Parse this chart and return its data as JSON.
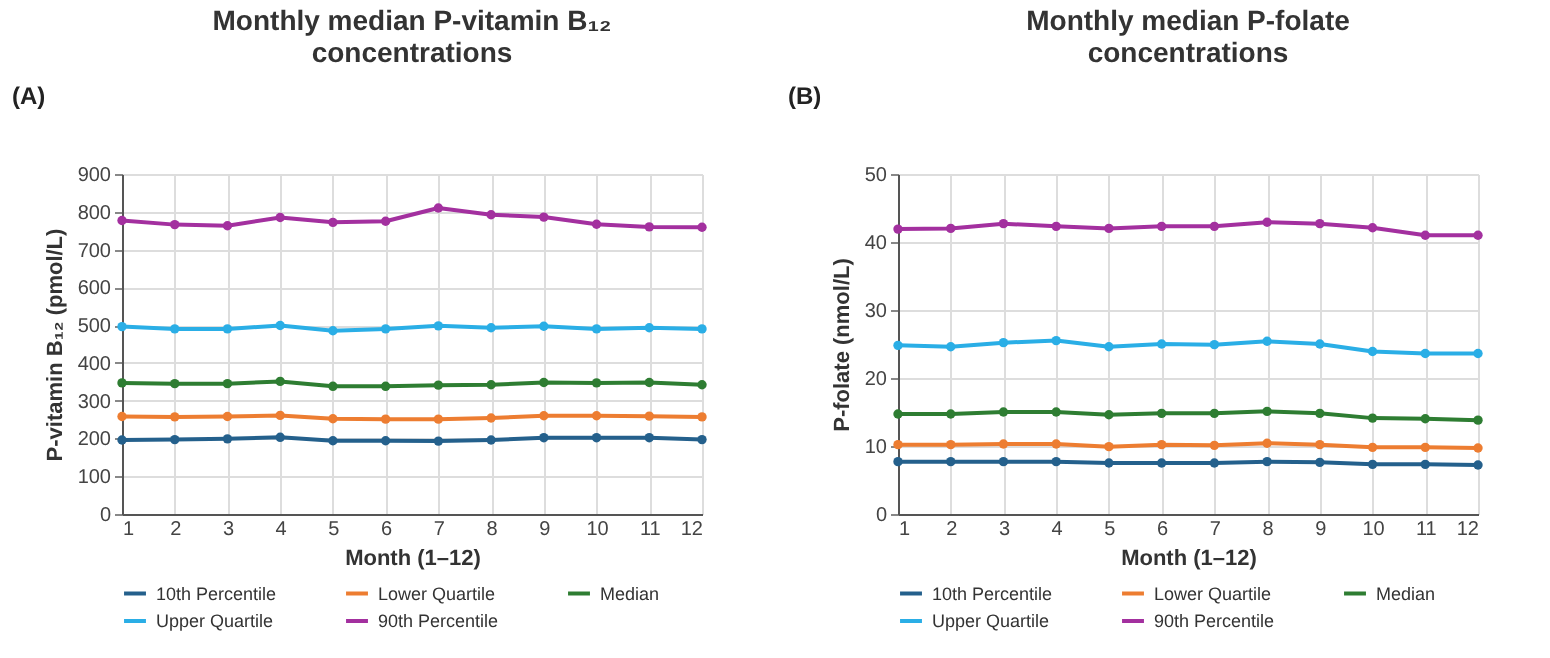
{
  "chart_data": [
    {
      "type": "line",
      "title": "Monthly median P-vitamin B₁₂ concentrations",
      "xlabel": "Month (1–12)",
      "ylabel": "P-vitamin B₁₂ (pmol/L)",
      "annotations": [
        "(A)"
      ],
      "x": [
        1,
        2,
        3,
        4,
        5,
        6,
        7,
        8,
        9,
        10,
        11,
        12
      ],
      "xlim": [
        1,
        12
      ],
      "xticks": [
        1,
        2,
        3,
        4,
        5,
        6,
        7,
        8,
        9,
        10,
        11,
        12
      ],
      "ylim": [
        0,
        900
      ],
      "yticks": [
        0,
        100,
        200,
        300,
        400,
        500,
        600,
        700,
        800,
        900
      ],
      "grid": true,
      "legend": "bottom",
      "marker": "circle",
      "series": [
        {
          "name": "10th Percentile",
          "color": "#24608c",
          "values": [
            196,
            197,
            199,
            203,
            194,
            194,
            193,
            196,
            202,
            202,
            202,
            197
          ]
        },
        {
          "name": "Lower Quartile",
          "color": "#ed7d31",
          "values": [
            258,
            257,
            258,
            261,
            252,
            251,
            251,
            254,
            260,
            260,
            259,
            257
          ]
        },
        {
          "name": "Median",
          "color": "#2e7d32",
          "values": [
            347,
            345,
            345,
            351,
            338,
            338,
            341,
            342,
            348,
            347,
            348,
            342
          ]
        },
        {
          "name": "Upper Quartile",
          "color": "#2aaee6",
          "values": [
            496,
            490,
            490,
            499,
            485,
            490,
            498,
            493,
            497,
            490,
            493,
            490
          ]
        },
        {
          "name": "90th Percentile",
          "color": "#a3309f",
          "values": [
            777,
            766,
            763,
            785,
            772,
            775,
            810,
            792,
            786,
            767,
            760,
            759
          ]
        }
      ]
    },
    {
      "type": "line",
      "title": "Monthly median P-folate concentrations",
      "xlabel": "Month (1–12)",
      "ylabel": "P-folate (nmol/L)",
      "annotations": [
        "(B)"
      ],
      "x": [
        1,
        2,
        3,
        4,
        5,
        6,
        7,
        8,
        9,
        10,
        11,
        12
      ],
      "xlim": [
        1,
        12
      ],
      "xticks": [
        1,
        2,
        3,
        4,
        5,
        6,
        7,
        8,
        9,
        10,
        11,
        12
      ],
      "ylim": [
        0,
        50
      ],
      "yticks": [
        0,
        10,
        20,
        30,
        40,
        50
      ],
      "grid": true,
      "legend": "bottom",
      "marker": "circle",
      "series": [
        {
          "name": "10th Percentile",
          "color": "#24608c",
          "values": [
            7.7,
            7.7,
            7.7,
            7.7,
            7.5,
            7.5,
            7.5,
            7.7,
            7.6,
            7.3,
            7.3,
            7.2
          ]
        },
        {
          "name": "Lower Quartile",
          "color": "#ed7d31",
          "values": [
            10.2,
            10.2,
            10.3,
            10.3,
            9.9,
            10.2,
            10.1,
            10.4,
            10.2,
            9.8,
            9.8,
            9.7
          ]
        },
        {
          "name": "Median",
          "color": "#2e7d32",
          "values": [
            14.7,
            14.7,
            15.0,
            15.0,
            14.6,
            14.8,
            14.8,
            15.1,
            14.8,
            14.1,
            14.0,
            13.8
          ]
        },
        {
          "name": "Upper Quartile",
          "color": "#2aaee6",
          "values": [
            24.8,
            24.6,
            25.2,
            25.5,
            24.6,
            25.0,
            24.9,
            25.4,
            25.0,
            23.9,
            23.6,
            23.6
          ]
        },
        {
          "name": "90th Percentile",
          "color": "#a3309f",
          "values": [
            41.9,
            42.0,
            42.7,
            42.3,
            42.0,
            42.3,
            42.3,
            42.9,
            42.7,
            42.1,
            41.0,
            41.0
          ]
        }
      ]
    }
  ]
}
